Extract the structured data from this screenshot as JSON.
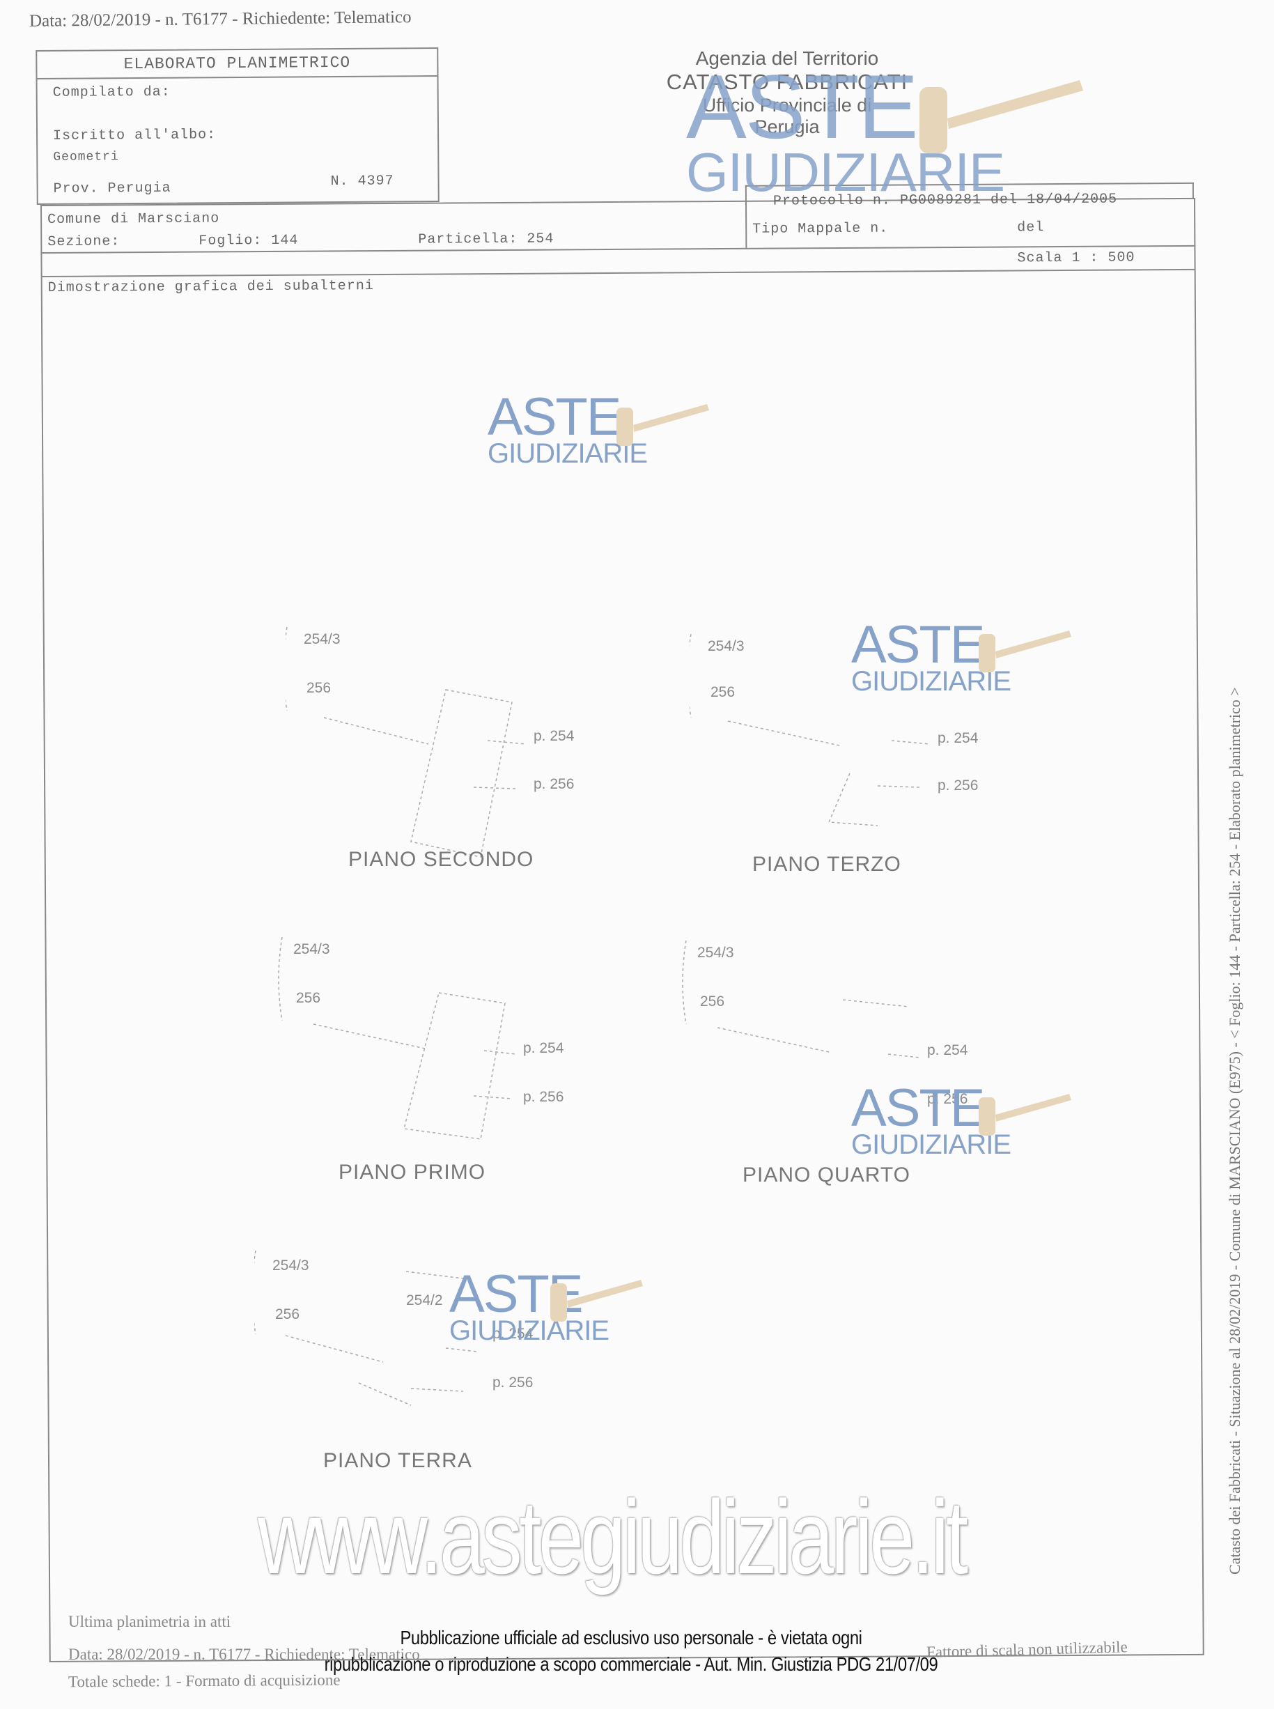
{
  "header_line": "Data: 28/02/2019 - n. T6177 - Richiedente: Telematico",
  "title_box": {
    "title": "ELABORATO PLANIMETRICO",
    "compilato_label": "Compilato da:",
    "compilato_value": "",
    "iscritto_label": "Iscritto all'albo:",
    "albo": "Geometri",
    "prov": "Prov. Perugia",
    "numero": "N.  4397"
  },
  "agency": {
    "line1": "Agenzia del Territorio",
    "line2": "CATASTO FABBRICATI",
    "line3": "Ufficio Provinciale di",
    "line4": "Perugia"
  },
  "info": {
    "comune": "Comune di Marsciano",
    "sezione": "Sezione:",
    "foglio": "Foglio: 144",
    "particella": "Particella: 254",
    "protocollo": "Protocollo n. PG0089281 del 18/04/2005",
    "tipo_mappale": "Tipo Mappale n.",
    "tipo_del": "del",
    "scala": "Scala 1 : 500",
    "dimostrazione": "Dimostrazione grafica dei subalterni"
  },
  "floors": [
    {
      "title": "PIANO SECONDO",
      "labels": [
        "254/3",
        "256",
        "p. 254",
        "p. 256"
      ]
    },
    {
      "title": "PIANO TERZO",
      "labels": [
        "254/3",
        "256",
        "p. 254",
        "p. 256"
      ]
    },
    {
      "title": "PIANO PRIMO",
      "labels": [
        "254/3",
        "256",
        "p. 254",
        "p. 256"
      ]
    },
    {
      "title": "PIANO QUARTO",
      "labels": [
        "254/3",
        "256",
        "p. 254",
        "p. 256"
      ]
    },
    {
      "title": "PIANO TERRA",
      "labels": [
        "254/3",
        "256",
        "254/2",
        "p. 254",
        "p. 256"
      ]
    }
  ],
  "watermark": {
    "brand_top": "ASTE",
    "brand_bottom": "GIUDIZIARIE",
    "url": "www.astegiudiziarie.it",
    "brand_color": "#86a2c9",
    "gavel_color": "#e6d5b8"
  },
  "side_text": "Catasto dei Fabbricati - Situazione al 28/02/2019 - Comune di MARSCIANO (E975) - < Foglio: 144 - Particella: 254 - Elaborato planimetrico >",
  "footer": {
    "ultima": "Ultima planimetria in atti",
    "data": "Data: 28/02/2019 - n. T6177 - Richiedente: Telematico",
    "totale": "Totale schede: 1 - Formato di acquisizione",
    "fattore": "Fattore di scala non utilizzabile"
  },
  "notice": {
    "line1": "Pubblicazione ufficiale ad esclusivo uso personale - è vietata ogni",
    "line2": "ripubblicazione o riproduzione a scopo commerciale - Aut. Min. Giustizia PDG 21/07/09"
  }
}
